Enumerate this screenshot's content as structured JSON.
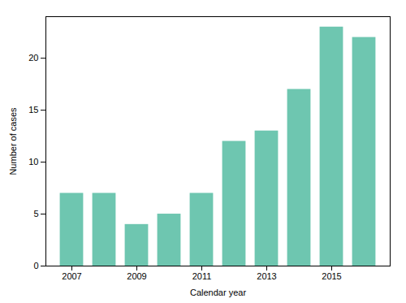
{
  "chart_data": {
    "type": "bar",
    "x": [
      2007,
      2008,
      2009,
      2010,
      2011,
      2012,
      2013,
      2014,
      2015,
      2016
    ],
    "values": [
      7,
      7,
      4,
      5,
      7,
      12,
      13,
      17,
      23,
      22
    ],
    "color": "#6EC6B0",
    "xlabel": "Calendar year",
    "ylabel": "Number of cases",
    "xlim": [
      2006.2,
      2016.8
    ],
    "xticks": [
      2007,
      2009,
      2011,
      2013,
      2015
    ],
    "ylim": [
      0,
      24
    ],
    "yticks": [
      0,
      5,
      10,
      15,
      20
    ],
    "grid": false
  }
}
